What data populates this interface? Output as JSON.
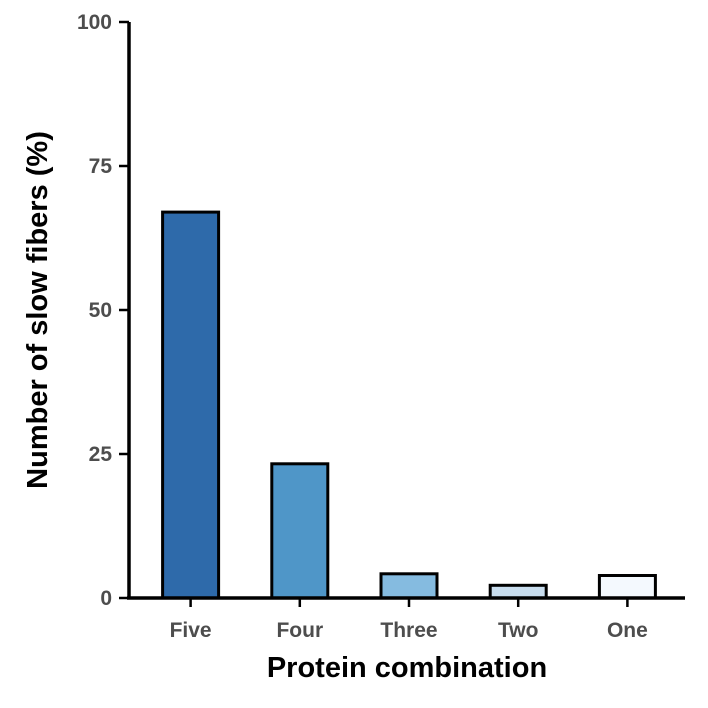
{
  "chart_data": {
    "type": "bar",
    "title": "",
    "xlabel": "Protein combination",
    "ylabel": "Number of slow fibers (%)",
    "categories": [
      "Five",
      "Four",
      "Three",
      "Two",
      "One"
    ],
    "values": [
      67,
      23.3,
      4.2,
      2.2,
      3.9
    ],
    "bar_colors": [
      "#2e6aaa",
      "#4f96c8",
      "#85bbe0",
      "#c8ddee",
      "#f4f9fe"
    ],
    "ylim": [
      0,
      100
    ],
    "yticks": [
      "0",
      "25",
      "50",
      "75",
      "100"
    ],
    "grid": false,
    "legend": "none"
  }
}
